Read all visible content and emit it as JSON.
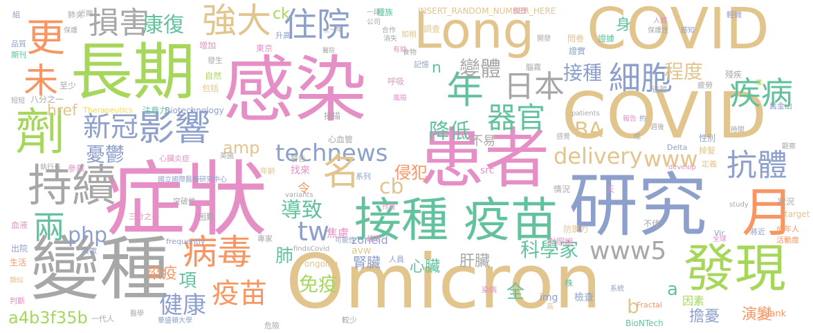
{
  "words": {
    "kanran": "感染",
    "omicron": "Omicron",
    "zhengzhuang": "症狀",
    "huanzhe": "患者",
    "yanjiu": "研究",
    "covid1": "COVID",
    "covid2": "COVID",
    "long": "Long",
    "changqi": "長期",
    "bianzhong": "變種",
    "faxian": "發現",
    "jiezhong1": "接種",
    "yimiao1": "疫苗",
    "chixu": "持續",
    "ji": "劑",
    "yue": "月",
    "bingdu": "病毒",
    "yingxiang": "影響",
    "technews": "technews",
    "www5": "www5",
    "kangti": "抗體",
    "jibing": "疾病",
    "xibao": "細胞",
    "zhuyuan": "住院",
    "qiangda": "強大",
    "sunhai": "損害",
    "geng": "更",
    "wei": "未",
    "nian": "年",
    "riben": "日本",
    "qiguan": "器官",
    "xinguan": "新冠",
    "liang": "兩",
    "php": "php",
    "tw": "tw",
    "delivery": "delivery",
    "www": "www",
    "ming": "名",
    "yimiao2": "疫苗",
    "jiankang": "健康",
    "mianyi": "免疫",
    "kexuejia": "科學家",
    "daozhi": "導致",
    "youyu": "憂鬱",
    "jiangdi": "降低",
    "amp": "amp",
    "cb": "cb",
    "ba": "BA",
    "kangfu": "康復",
    "jiezhong2": "接種",
    "chengdu": "程度",
    "bianti": "變體",
    "ck": "ck",
    "insert": "INSERT_RANDOM_NUMBER_HERE",
    "href": "href",
    "a4b": "a4b3f35b",
    "b": "b",
    "a": "a",
    "xiang": "項",
    "fei": "肺",
    "ranyi": "染疫",
    "xinzang": "心臟",
    "shenzang": "腎臟",
    "ganzang": "肝臟",
    "qinfan": "侵犯",
    "yanbian": "演變",
    "danyou": "擔憂",
    "quan": "全",
    "shen": "身",
    "n": "n",
    "buyi": "不易",
    "jiaolv": "焦慮",
    "ling": "令",
    "zhaolai": "找來",
    "zoneid": "zoneid",
    "avw": "avw",
    "img": "img",
    "src": "src",
    "jiancha": "檢查",
    "yinsu": "因素",
    "blank": "_blank",
    "biontech": "BioNTech",
    "fractal": "Fractal",
    "shiwu": "食物",
    "shangnian": "上一年",
    "zhongzu": "種族",
    "ruxiang": "如相",
    "xinxueguan": "心血管",
    "jingao": "警告",
    "saomiao": "掃描",
    "therapeutics": "Therapeutics",
    "biotechnology": "Biotechnology",
    "zhuyili": "注意力",
    "bafenzhiyi": "八分之一",
    "zhishao": "至少",
    "baokuo": "包括",
    "ziran": "自然",
    "zengjia": "增加",
    "dongjing": "東京",
    "shenggao": "升高",
    "huxi": "呼吸",
    "jiyi": "記憶",
    "naowu": "腦霧",
    "diaocha": "調查",
    "wenjuan": "問卷",
    "zhengjv": "證據",
    "zhengshi": "證實",
    "canji": "殘疾",
    "zhuisu": "追蹤",
    "pilao": "疲勞",
    "jinshan": "舊金山",
    "xingbie": "性別",
    "diaofa": "掉髮",
    "shijian": "時間",
    "patients": "patients",
    "delta": "Delta",
    "dingyi": "定義",
    "develop": "develop",
    "guancha": "觀察",
    "study": "study",
    "zhuangkuang": "狀況",
    "target": "target",
    "chengnianren": "成年人",
    "huodongdu": "活動度",
    "jiangjin": "將近",
    "wangluo": "網路",
    "vir": "Vir",
    "quanqiu": "全球",
    "fangyuli": "防禦力",
    "duizhaozu": "對照組",
    "bujia": "不佳",
    "qingkuang": "情況",
    "frequently": "frequently",
    "kunnan": "困難",
    "tupoxing": "突破性",
    "sanfenzhiyi": "三分之一",
    "guoli": "國立國際醫療研究中心",
    "canyu": "參與",
    "zhixingzhang": "執行長",
    "xueye": "血液",
    "chuyuan": "出院",
    "shenghuo": "生活",
    "lei": "類似",
    "panduan": "判斷",
    "yidairen": "一代人",
    "yixue": "醫學",
    "huashengdun": "華盛頓大學",
    "jiaoshao": "較少",
    "renyuan": "人員",
    "kenengxing": "可能性",
    "findscovid": "findsCovid",
    "ongoing": "ongoing",
    "zhuanjia": "專家",
    "kesou": "咳嗽",
    "xinzangyan": "心臟炎症",
    "variants": "variants",
    "nianling": "年齡",
    "xilie": "系列",
    "xitong": "系統",
    "gao": "高",
    "ranbing": "染病",
    "zhu": "株",
    "tian": "天",
    "qingwei": "輕微",
    "zhun": "准",
    "jinqi": "近期",
    "feiyan": "肺炎",
    "zu": "組",
    "baohu": "保護",
    "pinzhi": "品質",
    "qikan": "期刊",
    "duanxin": "短短",
    "mianyili": "免疫力",
    "renti": "人體",
    "baohuxing": "保護性",
    "ganzhi": "感知",
    "xiaoshi": "消失",
    "youzhu": "有助",
    "hezuo": "合作",
    "fengxian": "風險",
    "baogao": "報告",
    "yue2": "約",
    "ganjue": "感覺",
    "cheng": "成",
    "zhou": "週後",
    "fasheng": "發生",
    "yiyuan": "醫院",
    "wei2": "危險",
    "gongsi": "公司",
    "yiduan": "一段",
    "yingguo": "英國",
    "kaishi": "開發",
    "jingqi": "經歷",
    "chaoguo": "超過",
    "zuozhe": "作者"
  },
  "colors": {
    "tan": "#e2c48d",
    "pink": "#e68fc6",
    "blue": "#8d9fcb",
    "green": "#62c29e",
    "gray": "#a7a7a7",
    "lime": "#a6d75a",
    "orange": "#f79662",
    "yellow": "#fed94c"
  }
}
